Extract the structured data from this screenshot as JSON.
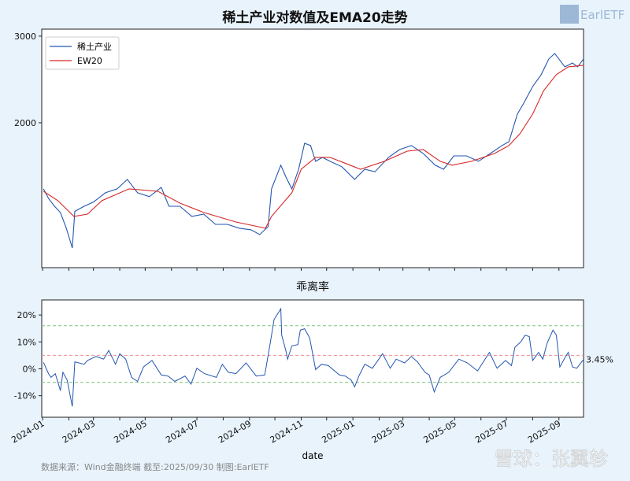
{
  "logo": {
    "text": "EarlETF"
  },
  "footer": {
    "source": "数据来源：Wind金融终端 截至:2025/09/30 制图:EarlETF"
  },
  "watermark": {
    "text": "雪球：张翼轸"
  },
  "chart_data": [
    {
      "type": "line",
      "title": "稀土产业对数值及EMA20走势",
      "xlabel": "",
      "ylabel": "",
      "yscale": "log",
      "ylim": [
        1015,
        3100
      ],
      "yticks": [
        2000,
        3000
      ],
      "ytick_labels": [
        "2000",
        "3000"
      ],
      "xlim": [
        "2023-12-31",
        "2025-09-30"
      ],
      "grid": false,
      "legend": "top-left",
      "series": [
        {
          "name": "稀土产业",
          "color": "#2456b0",
          "x": [
            "2024-01-02",
            "2024-01-08",
            "2024-01-15",
            "2024-01-22",
            "2024-01-29",
            "2024-02-05",
            "2024-02-08",
            "2024-02-19",
            "2024-03-01",
            "2024-03-15",
            "2024-03-29",
            "2024-04-10",
            "2024-04-22",
            "2024-05-06",
            "2024-05-20",
            "2024-05-29",
            "2024-06-11",
            "2024-06-25",
            "2024-07-09",
            "2024-07-23",
            "2024-08-06",
            "2024-08-20",
            "2024-09-03",
            "2024-09-13",
            "2024-09-23",
            "2024-09-27",
            "2024-10-08",
            "2024-10-14",
            "2024-10-21",
            "2024-10-29",
            "2024-11-05",
            "2024-11-12",
            "2024-11-18",
            "2024-11-26",
            "2024-12-05",
            "2024-12-19",
            "2025-01-03",
            "2025-01-15",
            "2025-01-27",
            "2025-02-12",
            "2025-02-25",
            "2025-03-11",
            "2025-03-25",
            "2025-04-08",
            "2025-04-18",
            "2025-04-30",
            "2025-05-15",
            "2025-05-29",
            "2025-06-12",
            "2025-06-26",
            "2025-07-04",
            "2025-07-14",
            "2025-07-22",
            "2025-08-01",
            "2025-08-11",
            "2025-08-20",
            "2025-08-27",
            "2025-09-08",
            "2025-09-17",
            "2025-09-23",
            "2025-09-30"
          ],
          "values": [
            1468,
            1404,
            1353,
            1314,
            1221,
            1113,
            1321,
            1353,
            1380,
            1441,
            1468,
            1534,
            1441,
            1415,
            1478,
            1353,
            1353,
            1290,
            1304,
            1243,
            1243,
            1221,
            1212,
            1185,
            1230,
            1468,
            1640,
            1551,
            1468,
            1609,
            1817,
            1798,
            1670,
            1701,
            1670,
            1628,
            1534,
            1609,
            1590,
            1701,
            1764,
            1798,
            1732,
            1640,
            1609,
            1713,
            1713,
            1670,
            1732,
            1798,
            1830,
            2083,
            2200,
            2370,
            2505,
            2696,
            2766,
            2598,
            2646,
            2598,
            2696
          ]
        },
        {
          "name": "EW20",
          "color": "#d62728",
          "x": [
            "2024-01-02",
            "2024-01-19",
            "2024-02-07",
            "2024-02-23",
            "2024-03-11",
            "2024-04-12",
            "2024-05-16",
            "2024-06-11",
            "2024-07-09",
            "2024-08-16",
            "2024-09-20",
            "2024-09-27",
            "2024-10-21",
            "2024-11-01",
            "2024-11-18",
            "2024-12-05",
            "2024-12-24",
            "2025-01-10",
            "2025-02-07",
            "2025-03-06",
            "2025-03-25",
            "2025-04-14",
            "2025-04-28",
            "2025-05-21",
            "2025-06-17",
            "2025-07-04",
            "2025-07-17",
            "2025-08-01",
            "2025-08-14",
            "2025-08-29",
            "2025-09-12",
            "2025-09-30"
          ],
          "values": [
            1451,
            1389,
            1290,
            1304,
            1389,
            1468,
            1451,
            1373,
            1314,
            1257,
            1221,
            1290,
            1441,
            1609,
            1701,
            1701,
            1652,
            1609,
            1670,
            1751,
            1764,
            1670,
            1640,
            1670,
            1732,
            1798,
            1900,
            2083,
            2326,
            2505,
            2598,
            2618
          ]
        }
      ]
    },
    {
      "type": "line",
      "title": "乖离率",
      "xlabel": "date",
      "ylabel": "",
      "ylim": [
        -18,
        25.6
      ],
      "yticks": [
        -10,
        0,
        10,
        20
      ],
      "ytick_labels": [
        "-10%",
        "0%",
        "10%",
        "20%"
      ],
      "xticks": [
        "2024-01",
        "2024-03",
        "2024-05",
        "2024-07",
        "2024-09",
        "2024-11",
        "2025-01",
        "2025-03",
        "2025-05",
        "2025-07",
        "2025-09"
      ],
      "grid": false,
      "hlines": [
        {
          "value": 16,
          "color": "#7cc67c",
          "style": "dashed"
        },
        {
          "value": 5,
          "color": "#f08c8c",
          "style": "dashed"
        },
        {
          "value": -5,
          "color": "#7cc67c",
          "style": "dashed"
        }
      ],
      "annotation": {
        "text": "3.45%",
        "value": 3.45
      },
      "series": [
        {
          "color": "#2456b0",
          "x": [
            "2024-01-02",
            "2024-01-08",
            "2024-01-11",
            "2024-01-16",
            "2024-01-22",
            "2024-01-25",
            "2024-01-30",
            "2024-02-05",
            "2024-02-08",
            "2024-02-19",
            "2024-02-23",
            "2024-03-04",
            "2024-03-13",
            "2024-03-19",
            "2024-03-27",
            "2024-04-01",
            "2024-04-08",
            "2024-04-15",
            "2024-04-22",
            "2024-04-29",
            "2024-05-09",
            "2024-05-20",
            "2024-05-28",
            "2024-06-05",
            "2024-06-17",
            "2024-06-24",
            "2024-07-01",
            "2024-07-10",
            "2024-07-24",
            "2024-07-31",
            "2024-08-07",
            "2024-08-16",
            "2024-08-28",
            "2024-09-09",
            "2024-09-19",
            "2024-09-26",
            "2024-09-30",
            "2024-10-08",
            "2024-10-09",
            "2024-10-14",
            "2024-10-16",
            "2024-10-21",
            "2024-10-28",
            "2024-10-31",
            "2024-11-05",
            "2024-11-11",
            "2024-11-18",
            "2024-11-25",
            "2024-12-03",
            "2024-12-16",
            "2024-12-23",
            "2024-12-30",
            "2025-01-03",
            "2025-01-08",
            "2025-01-15",
            "2025-01-24",
            "2025-02-05",
            "2025-02-14",
            "2025-02-21",
            "2025-03-03",
            "2025-03-11",
            "2025-03-18",
            "2025-03-27",
            "2025-04-01",
            "2025-04-07",
            "2025-04-14",
            "2025-04-24",
            "2025-05-06",
            "2025-05-16",
            "2025-05-28",
            "2025-06-11",
            "2025-06-20",
            "2025-06-30",
            "2025-07-07",
            "2025-07-11",
            "2025-07-18",
            "2025-07-23",
            "2025-07-28",
            "2025-08-01",
            "2025-08-08",
            "2025-08-13",
            "2025-08-18",
            "2025-08-25",
            "2025-08-29",
            "2025-09-02",
            "2025-09-08",
            "2025-09-12",
            "2025-09-17",
            "2025-09-22",
            "2025-09-30"
          ],
          "values": [
            2.4,
            -1.8,
            -3.2,
            -1.8,
            -8.1,
            -1.3,
            -4.2,
            -14,
            2.6,
            1.7,
            3.1,
            4.6,
            3.6,
            6.8,
            1.7,
            5.6,
            3.6,
            -3.2,
            -4.7,
            0.7,
            3.1,
            -2.3,
            -2.7,
            -4.7,
            -2.7,
            -5.7,
            0.2,
            -1.8,
            -3.2,
            1.7,
            -1.3,
            -1.8,
            2.2,
            -2.7,
            -2.3,
            10.5,
            18.3,
            22.3,
            12.5,
            6.6,
            3.6,
            8.5,
            9.0,
            14.4,
            14.9,
            11.5,
            -0.3,
            1.7,
            1.2,
            -2.3,
            -2.7,
            -4.2,
            -6.7,
            -2.7,
            1.7,
            0.2,
            5.6,
            0.2,
            3.6,
            2.2,
            4.6,
            2.6,
            -1.3,
            -2.3,
            -8.6,
            -3.2,
            -1.3,
            3.6,
            2.2,
            -0.8,
            6.1,
            0.2,
            3.1,
            1.2,
            8.0,
            10.0,
            12.5,
            12.0,
            3.1,
            6.1,
            3.6,
            9.5,
            14.4,
            12.5,
            0.7,
            4.1,
            6.1,
            0.7,
            0.2,
            3.45
          ]
        }
      ]
    }
  ]
}
